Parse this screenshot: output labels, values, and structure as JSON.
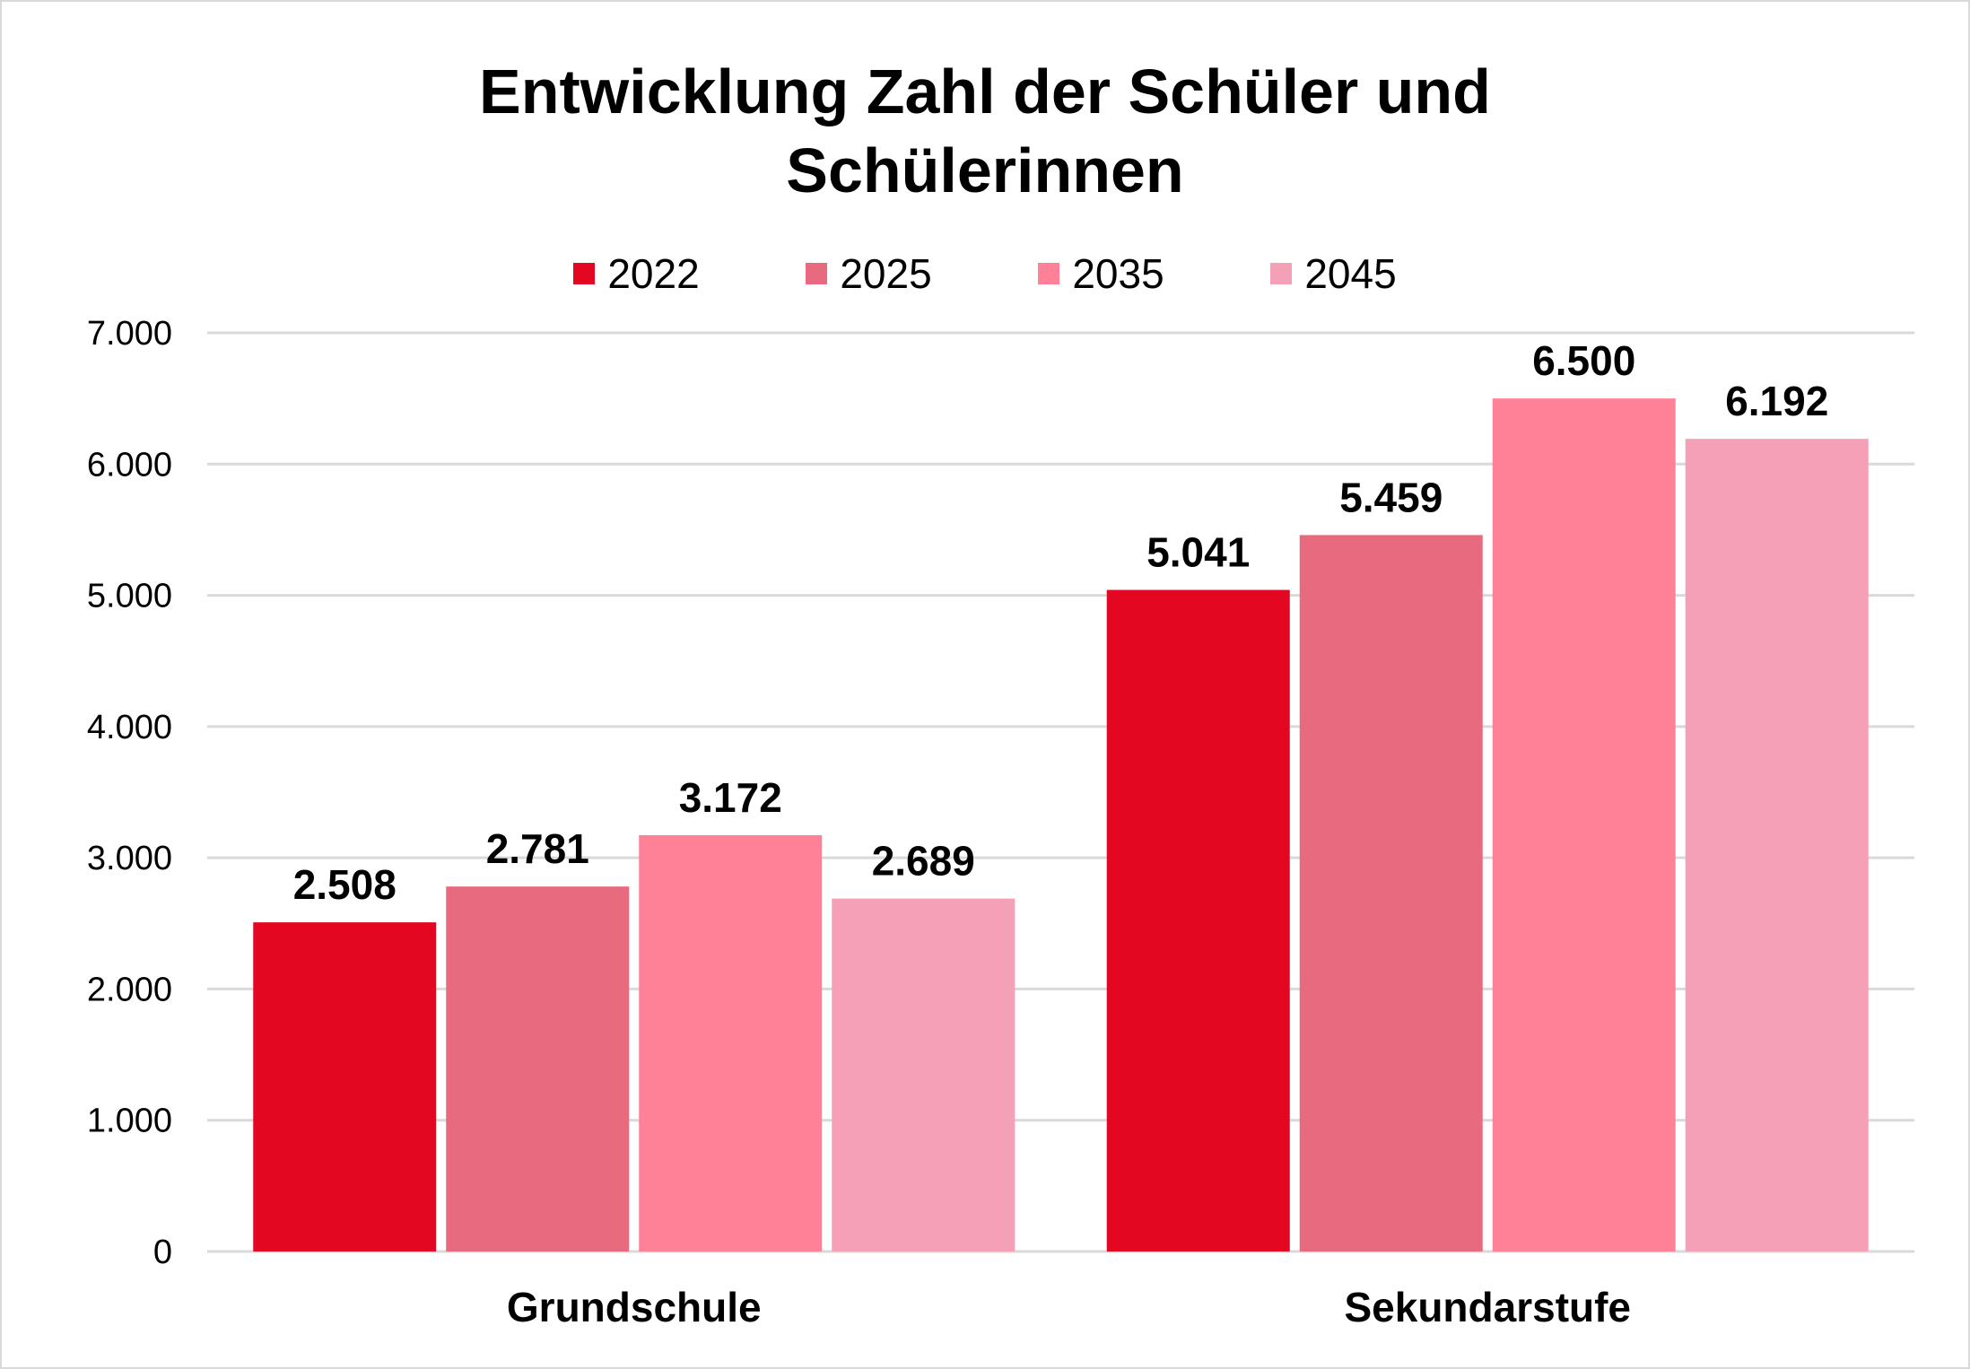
{
  "chart_data": {
    "type": "bar",
    "title": "Entwicklung Zahl der Schüler und Schülerinnen",
    "title_lines": [
      "Entwicklung Zahl der Schüler und",
      "Schülerinnen"
    ],
    "xlabel": "",
    "ylabel": "",
    "categories": [
      "Grundschule",
      "Sekundarstufe"
    ],
    "series": [
      {
        "name": "2022",
        "color": "#E30722",
        "values": [
          2508,
          5041
        ],
        "labels": [
          "2.508",
          "5.041"
        ]
      },
      {
        "name": "2025",
        "color": "#E86A7E",
        "values": [
          2781,
          5459
        ],
        "labels": [
          "2.781",
          "5.459"
        ]
      },
      {
        "name": "2035",
        "color": "#FF8197",
        "values": [
          3172,
          6500
        ],
        "labels": [
          "3.172",
          "6.500"
        ]
      },
      {
        "name": "2045",
        "color": "#F4A0B7",
        "values": [
          2689,
          6192
        ],
        "labels": [
          "2.689",
          "6.192"
        ]
      }
    ],
    "ylim": [
      0,
      7000
    ],
    "yticks": [
      0,
      1000,
      2000,
      3000,
      4000,
      5000,
      6000,
      7000
    ],
    "ytick_labels": [
      "0",
      "1.000",
      "2.000",
      "3.000",
      "4.000",
      "5.000",
      "6.000",
      "7.000"
    ],
    "grid": true,
    "legend_position": "top"
  }
}
